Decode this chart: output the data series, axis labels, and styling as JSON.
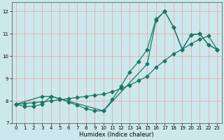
{
  "xlabel": "Humidex (Indice chaleur)",
  "xlim": [
    -0.5,
    23.5
  ],
  "ylim": [
    7.0,
    12.4
  ],
  "yticks": [
    7,
    8,
    9,
    10,
    11,
    12
  ],
  "xticks": [
    0,
    1,
    2,
    3,
    4,
    5,
    6,
    7,
    8,
    9,
    10,
    11,
    12,
    13,
    14,
    15,
    16,
    17,
    18,
    19,
    20,
    21,
    22,
    23
  ],
  "background_color": "#cde8ec",
  "grid_color": "#e8a0a0",
  "line_color": "#1a7868",
  "line1_x": [
    0,
    1,
    2,
    3,
    4,
    5,
    6,
    7,
    8,
    9,
    10,
    11,
    12,
    13,
    14,
    15,
    16,
    17,
    18,
    19,
    20,
    21,
    22,
    23
  ],
  "line1_y": [
    7.85,
    7.75,
    7.75,
    7.85,
    8.2,
    8.1,
    7.95,
    7.8,
    7.65,
    7.55,
    7.55,
    8.05,
    8.65,
    9.3,
    9.75,
    10.3,
    11.65,
    12.0,
    11.3,
    10.3,
    10.95,
    11.0,
    10.5,
    10.3
  ],
  "line2_x": [
    0,
    3,
    4,
    10,
    15,
    16,
    17,
    18,
    19,
    20,
    21,
    22,
    23
  ],
  "line2_y": [
    7.85,
    8.2,
    8.2,
    7.55,
    9.65,
    11.6,
    12.0,
    11.3,
    10.3,
    10.95,
    11.0,
    10.5,
    10.3
  ],
  "line3_x": [
    0,
    1,
    2,
    3,
    4,
    5,
    6,
    7,
    8,
    9,
    10,
    11,
    12,
    13,
    14,
    15,
    16,
    17,
    18,
    19,
    20,
    21,
    22,
    23
  ],
  "line3_y": [
    7.85,
    7.88,
    7.92,
    7.95,
    8.0,
    8.05,
    8.1,
    8.15,
    8.2,
    8.25,
    8.3,
    8.4,
    8.55,
    8.7,
    8.9,
    9.1,
    9.5,
    9.8,
    10.1,
    10.3,
    10.55,
    10.75,
    10.9,
    10.3
  ]
}
